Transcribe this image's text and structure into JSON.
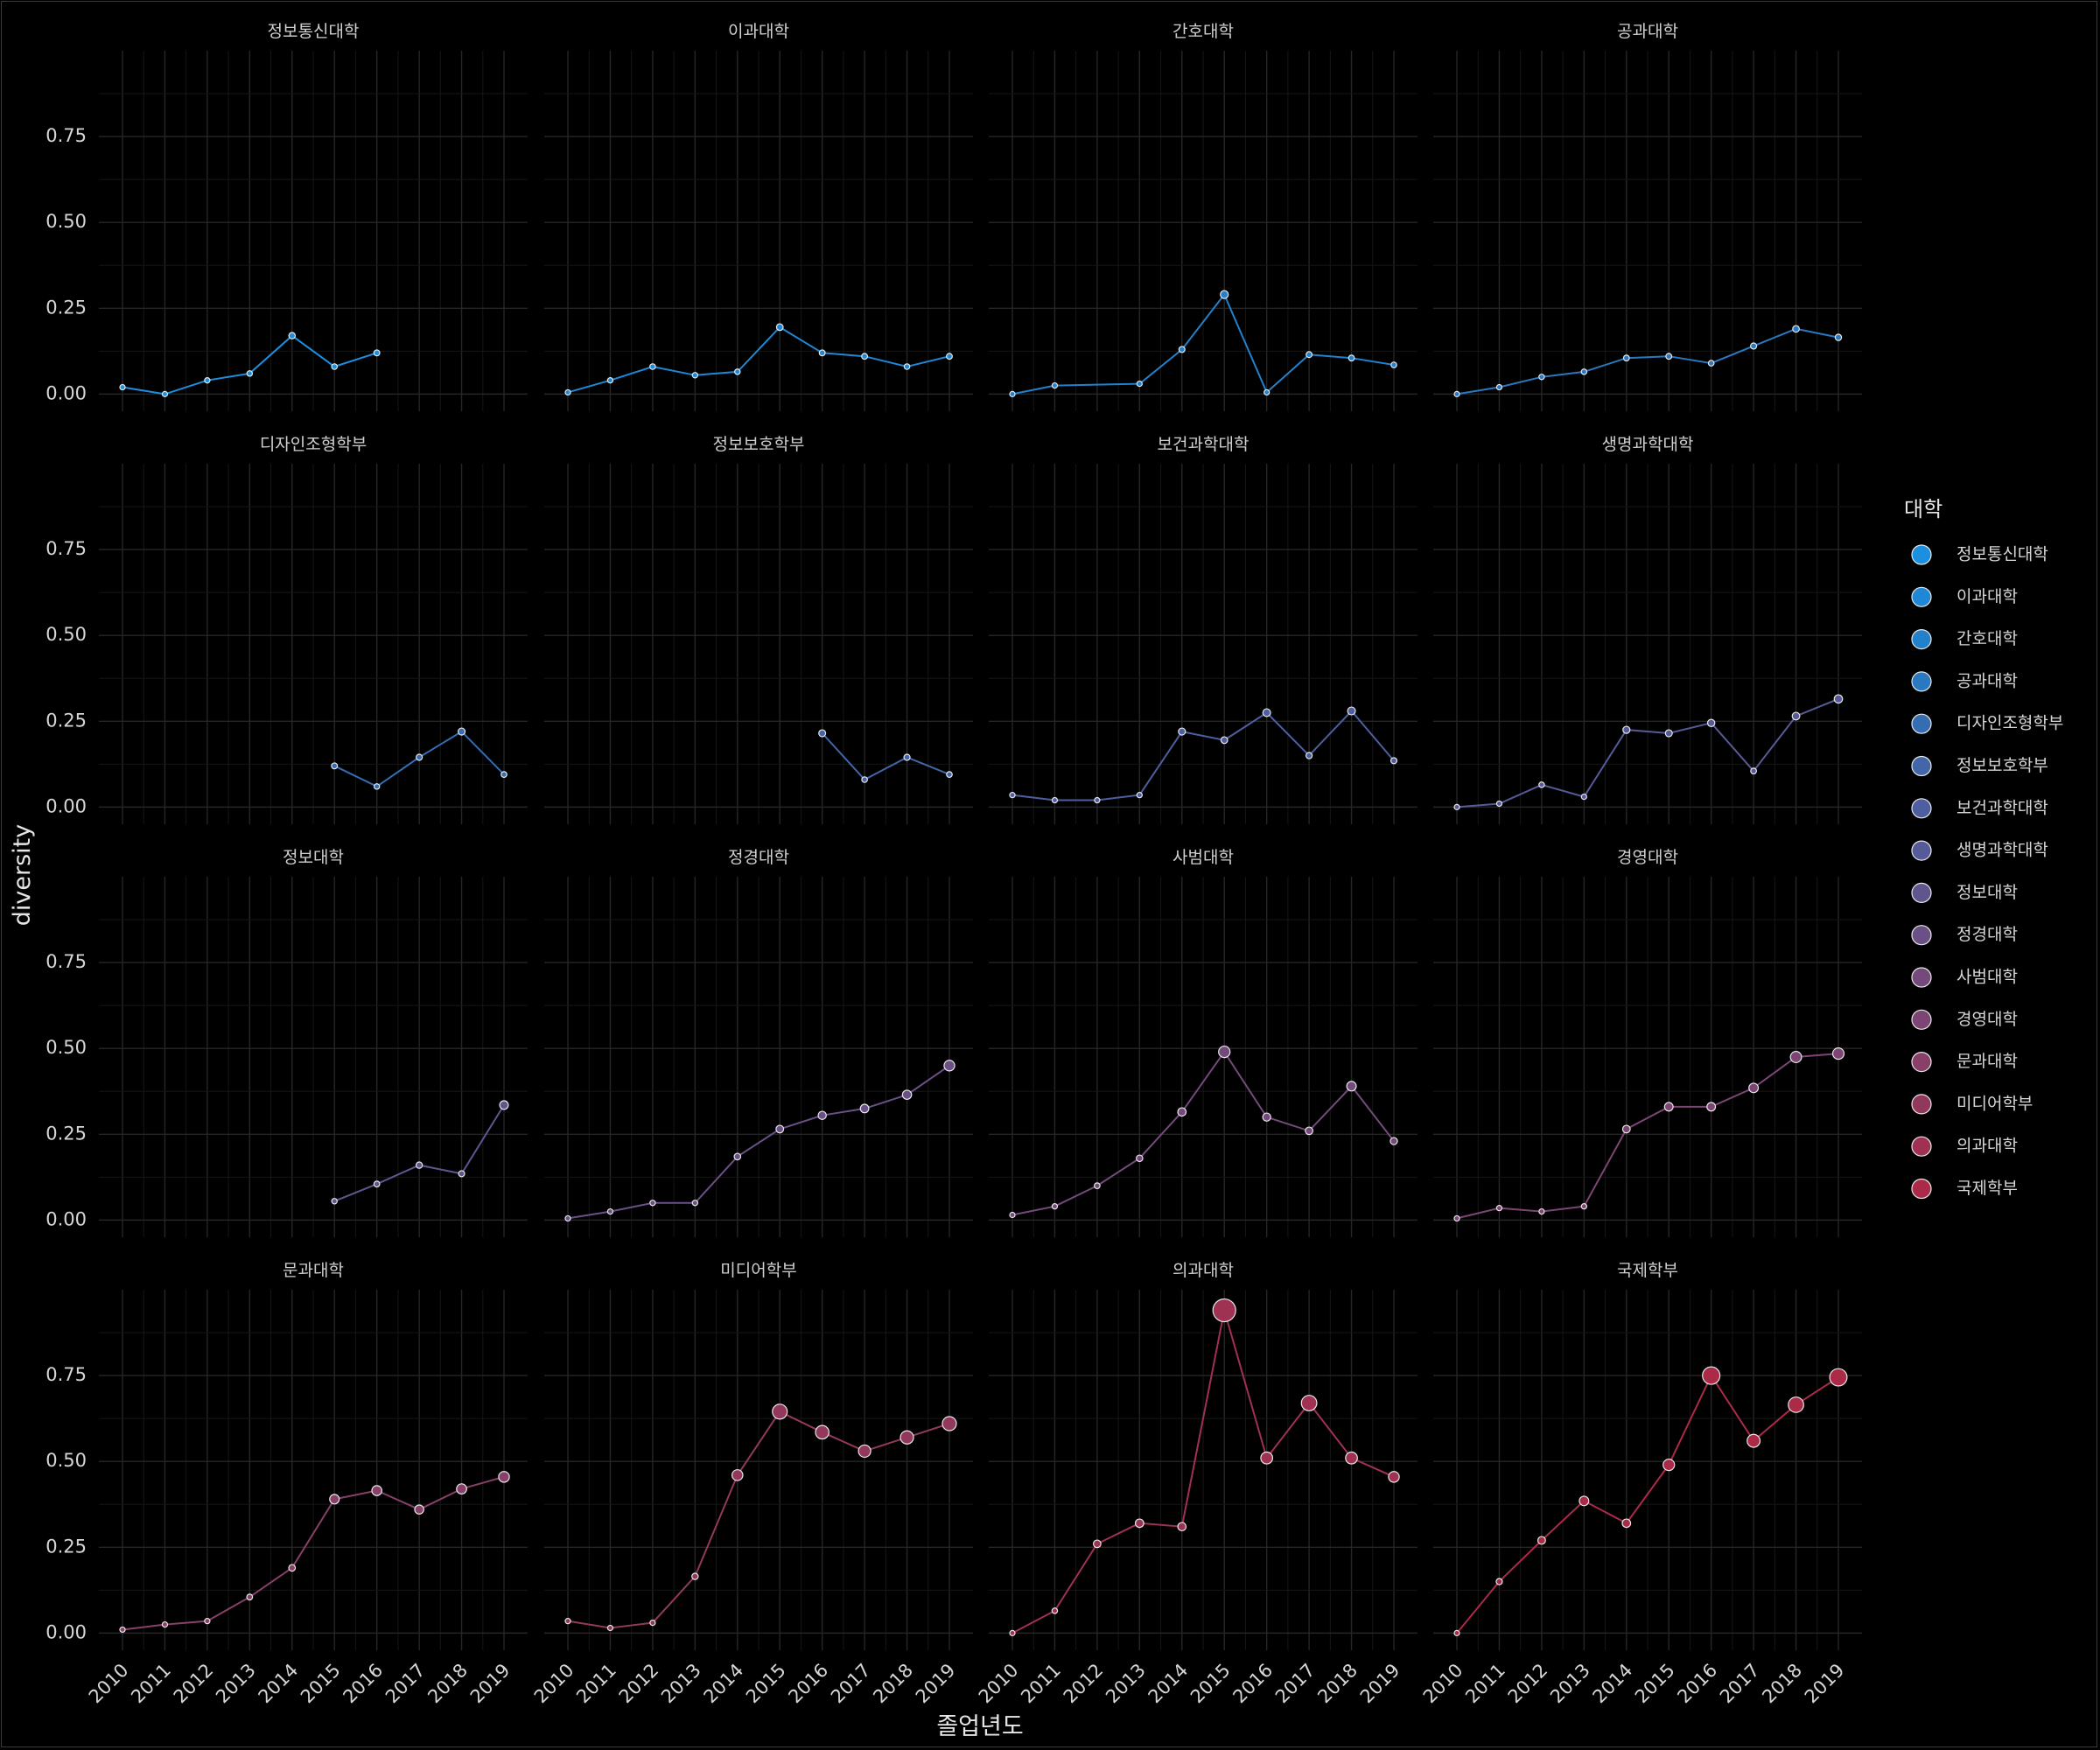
{
  "chart_data": {
    "type": "line",
    "xlabel": "졸업년도",
    "ylabel": "diversity",
    "x": [
      2010,
      2011,
      2012,
      2013,
      2014,
      2015,
      2016,
      2017,
      2018,
      2019
    ],
    "yticks": [
      "0.00",
      "0.25",
      "0.50",
      "0.75"
    ],
    "ylim": [
      -0.05,
      1.0
    ],
    "grid": true,
    "legend_title": "대학",
    "legend_position": "right",
    "background": "#000000",
    "series": [
      {
        "name": "정보통신대학",
        "color": "#1b8fe0",
        "values": [
          0.02,
          0.0,
          0.04,
          0.06,
          0.17,
          0.08,
          0.12,
          null,
          null,
          null
        ]
      },
      {
        "name": "이과대학",
        "color": "#1f88d6",
        "values": [
          0.005,
          0.04,
          0.08,
          0.055,
          0.065,
          0.195,
          0.12,
          0.11,
          0.08,
          0.11
        ]
      },
      {
        "name": "간호대학",
        "color": "#2380cb",
        "values": [
          0.0,
          0.025,
          null,
          0.03,
          0.13,
          0.29,
          0.005,
          0.115,
          0.105,
          0.085
        ]
      },
      {
        "name": "공과대학",
        "color": "#2a78c0",
        "values": [
          0.0,
          0.02,
          0.05,
          0.065,
          0.105,
          0.11,
          0.09,
          0.14,
          0.19,
          0.165
        ]
      },
      {
        "name": "디자인조형학부",
        "color": "#356db2",
        "values": [
          null,
          null,
          null,
          null,
          null,
          0.12,
          0.06,
          0.145,
          0.22,
          0.095
        ]
      },
      {
        "name": "정보보호학부",
        "color": "#4266a8",
        "values": [
          null,
          null,
          null,
          null,
          null,
          null,
          0.215,
          0.08,
          0.145,
          0.095
        ]
      },
      {
        "name": "보건과학대학",
        "color": "#4d5fa0",
        "values": [
          0.035,
          0.02,
          0.02,
          0.035,
          0.22,
          0.195,
          0.275,
          0.15,
          0.28,
          0.135
        ]
      },
      {
        "name": "생명과학대학",
        "color": "#575a98",
        "values": [
          0.0,
          0.01,
          0.065,
          0.03,
          0.225,
          0.215,
          0.245,
          0.105,
          0.265,
          0.315
        ]
      },
      {
        "name": "정보대학",
        "color": "#60558f",
        "values": [
          null,
          null,
          null,
          null,
          null,
          0.055,
          0.105,
          0.16,
          0.135,
          0.335
        ]
      },
      {
        "name": "정경대학",
        "color": "#6a5086",
        "values": [
          0.005,
          0.025,
          0.05,
          0.05,
          0.185,
          0.265,
          0.305,
          0.325,
          0.365,
          0.45
        ]
      },
      {
        "name": "사범대학",
        "color": "#744a7c",
        "values": [
          0.015,
          0.04,
          0.1,
          0.18,
          0.315,
          0.49,
          0.3,
          0.26,
          0.39,
          0.23
        ]
      },
      {
        "name": "경영대학",
        "color": "#7d4573",
        "values": [
          0.005,
          0.035,
          0.025,
          0.04,
          0.265,
          0.33,
          0.33,
          0.385,
          0.475,
          0.485
        ]
      },
      {
        "name": "문과대학",
        "color": "#883f68",
        "values": [
          0.01,
          0.025,
          0.035,
          0.105,
          0.19,
          0.39,
          0.415,
          0.36,
          0.42,
          0.455
        ]
      },
      {
        "name": "미디어학부",
        "color": "#93385d",
        "values": [
          0.035,
          0.015,
          0.03,
          0.165,
          0.46,
          0.645,
          0.585,
          0.53,
          0.57,
          0.61
        ]
      },
      {
        "name": "의과대학",
        "color": "#9f3152",
        "values": [
          0.0,
          0.065,
          0.26,
          0.32,
          0.31,
          0.94,
          0.51,
          0.67,
          0.51,
          0.455
        ]
      },
      {
        "name": "국제학부",
        "color": "#ab2a48",
        "values": [
          0.0,
          0.15,
          0.27,
          0.385,
          0.32,
          0.49,
          0.75,
          0.56,
          0.665,
          0.745
        ]
      }
    ]
  }
}
